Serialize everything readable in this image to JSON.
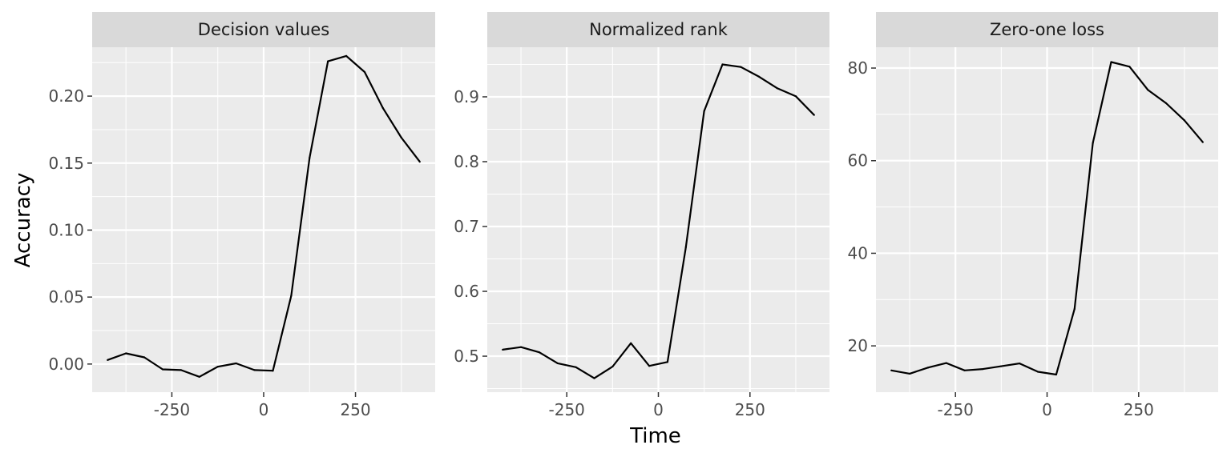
{
  "chart_data": {
    "type": "line",
    "layout": "facets",
    "xlabel": "Time",
    "ylabel": "Accuracy",
    "shared_x": {
      "x": [
        -425,
        -375,
        -325,
        -275,
        -225,
        -175,
        -125,
        -75,
        -25,
        25,
        75,
        125,
        175,
        225,
        275,
        325,
        375,
        425
      ],
      "xlim": [
        -467,
        467
      ],
      "ticks": [
        -250,
        0,
        250
      ],
      "tick_labels": [
        "-250",
        "0",
        "250"
      ]
    },
    "colors": {
      "panel_bg": "#ebebeb",
      "strip_bg": "#d9d9d9",
      "grid": "#ffffff",
      "line": "#000000"
    },
    "facets": [
      {
        "title": "Decision values",
        "ylim": [
          -0.021,
          0.2365
        ],
        "yticks": [
          0.0,
          0.05,
          0.1,
          0.15,
          0.2
        ],
        "ytick_labels": [
          "0.00",
          "0.05",
          "0.10",
          "0.15",
          "0.20"
        ],
        "values": [
          0.003,
          0.008,
          0.005,
          -0.004,
          -0.0045,
          -0.0095,
          -0.002,
          0.0005,
          -0.0045,
          -0.005,
          0.051,
          0.154,
          0.226,
          0.23,
          0.218,
          0.191,
          0.169,
          0.151
        ]
      },
      {
        "title": "Normalized rank",
        "ylim": [
          0.4445,
          0.9765
        ],
        "yticks": [
          0.5,
          0.6,
          0.7,
          0.8,
          0.9
        ],
        "ytick_labels": [
          "0.5",
          "0.6",
          "0.7",
          "0.8",
          "0.9"
        ],
        "values": [
          0.51,
          0.514,
          0.506,
          0.489,
          0.483,
          0.466,
          0.484,
          0.52,
          0.485,
          0.491,
          0.668,
          0.878,
          0.95,
          0.946,
          0.931,
          0.913,
          0.901,
          0.872
        ]
      },
      {
        "title": "Zero-one loss",
        "ylim": [
          10,
          84.5
        ],
        "yticks": [
          20,
          40,
          60,
          80
        ],
        "ytick_labels": [
          "20",
          "40",
          "60",
          "80"
        ],
        "values": [
          14.7,
          14.0,
          15.3,
          16.3,
          14.7,
          15.0,
          15.6,
          16.2,
          14.4,
          13.8,
          28.0,
          63.8,
          81.3,
          80.3,
          75.3,
          72.4,
          68.7,
          64.0
        ]
      }
    ]
  }
}
